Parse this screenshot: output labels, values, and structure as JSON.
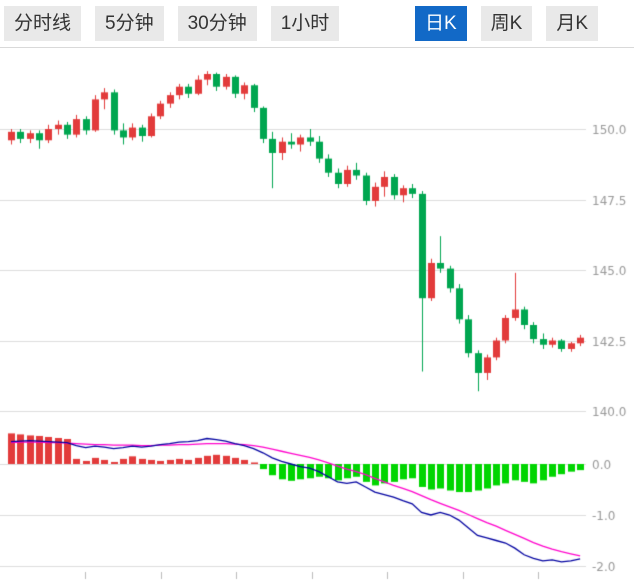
{
  "toolbar": {
    "tabs": [
      {
        "label": "分时线",
        "active": false
      },
      {
        "label": "5分钟",
        "active": false
      },
      {
        "label": "30分钟",
        "active": false
      },
      {
        "label": "1小时",
        "active": false
      },
      {
        "label": "日K",
        "active": true
      },
      {
        "label": "周K",
        "active": false
      },
      {
        "label": "月K",
        "active": false
      }
    ],
    "active_bg": "#1269c7",
    "active_fg": "#ffffff"
  },
  "chart_data": {
    "type": "candlestick+macd",
    "title": "",
    "price_panel": {
      "y_axis_labels": [
        "150.0",
        "147.5",
        "145.0",
        "142.5",
        "140.0"
      ],
      "y_axis_values": [
        150.0,
        147.5,
        145.0,
        142.5,
        140.0
      ],
      "ylim": [
        139.5,
        152.4
      ],
      "grid": true,
      "candles_ohlc": [
        [
          149.6,
          150.0,
          149.45,
          149.9
        ],
        [
          149.9,
          150.0,
          149.5,
          149.65
        ],
        [
          149.65,
          149.95,
          149.5,
          149.85
        ],
        [
          149.85,
          149.95,
          149.3,
          149.6
        ],
        [
          149.6,
          150.15,
          149.5,
          150.0
        ],
        [
          150.0,
          150.3,
          149.8,
          150.15
        ],
        [
          150.15,
          150.25,
          149.65,
          149.8
        ],
        [
          149.8,
          150.5,
          149.7,
          150.35
        ],
        [
          150.35,
          150.45,
          149.8,
          149.95
        ],
        [
          149.95,
          151.2,
          149.9,
          151.05
        ],
        [
          151.05,
          151.45,
          150.7,
          151.3
        ],
        [
          151.3,
          151.4,
          149.8,
          149.95
        ],
        [
          149.95,
          150.2,
          149.45,
          149.7
        ],
        [
          149.7,
          150.2,
          149.6,
          150.05
        ],
        [
          150.05,
          150.15,
          149.55,
          149.75
        ],
        [
          149.75,
          150.55,
          149.7,
          150.45
        ],
        [
          150.45,
          151.0,
          150.35,
          150.9
        ],
        [
          150.9,
          151.3,
          150.75,
          151.2
        ],
        [
          151.2,
          151.6,
          151.05,
          151.5
        ],
        [
          151.5,
          151.6,
          151.1,
          151.25
        ],
        [
          151.25,
          151.9,
          151.2,
          151.75
        ],
        [
          151.75,
          152.05,
          151.55,
          151.95
        ],
        [
          151.95,
          152.0,
          151.35,
          151.5
        ],
        [
          151.5,
          151.95,
          151.4,
          151.85
        ],
        [
          151.85,
          151.9,
          151.1,
          151.25
        ],
        [
          151.25,
          151.65,
          151.05,
          151.55
        ],
        [
          151.55,
          151.6,
          150.6,
          150.75
        ],
        [
          150.75,
          150.8,
          149.5,
          149.65
        ],
        [
          149.65,
          149.9,
          147.9,
          149.15
        ],
        [
          149.15,
          149.7,
          148.9,
          149.55
        ],
        [
          149.55,
          149.85,
          149.3,
          149.45
        ],
        [
          149.45,
          149.8,
          149.2,
          149.7
        ],
        [
          149.7,
          150.0,
          149.4,
          149.55
        ],
        [
          149.55,
          149.75,
          148.8,
          148.95
        ],
        [
          148.95,
          149.1,
          148.3,
          148.45
        ],
        [
          148.45,
          148.6,
          147.9,
          148.05
        ],
        [
          148.05,
          148.7,
          147.95,
          148.55
        ],
        [
          148.55,
          148.8,
          148.2,
          148.35
        ],
        [
          148.35,
          148.45,
          147.3,
          147.45
        ],
        [
          147.45,
          148.1,
          147.25,
          147.95
        ],
        [
          147.95,
          148.5,
          147.6,
          148.3
        ],
        [
          148.3,
          148.4,
          147.5,
          147.65
        ],
        [
          147.65,
          148.0,
          147.4,
          147.9
        ],
        [
          147.9,
          148.05,
          147.55,
          147.7
        ],
        [
          147.7,
          147.8,
          141.4,
          144.0
        ],
        [
          144.0,
          145.4,
          143.9,
          145.25
        ],
        [
          145.25,
          146.2,
          144.9,
          145.05
        ],
        [
          145.05,
          145.15,
          144.2,
          144.35
        ],
        [
          144.35,
          144.5,
          143.1,
          143.25
        ],
        [
          143.25,
          143.4,
          141.9,
          142.05
        ],
        [
          142.05,
          142.15,
          140.7,
          141.35
        ],
        [
          141.35,
          142.0,
          141.1,
          141.9
        ],
        [
          141.9,
          142.6,
          141.8,
          142.5
        ],
        [
          142.5,
          143.4,
          142.4,
          143.3
        ],
        [
          143.3,
          144.9,
          143.2,
          143.6
        ],
        [
          143.6,
          143.7,
          142.9,
          143.05
        ],
        [
          143.05,
          143.15,
          142.4,
          142.55
        ],
        [
          142.55,
          142.75,
          142.2,
          142.35
        ],
        [
          142.35,
          142.6,
          142.25,
          142.5
        ],
        [
          142.5,
          142.55,
          142.1,
          142.2
        ],
        [
          142.2,
          142.45,
          142.1,
          142.4
        ],
        [
          142.4,
          142.7,
          142.3,
          142.6
        ]
      ]
    },
    "macd_panel": {
      "y_axis_labels": [
        "0.0",
        "-1.0",
        "-2.0"
      ],
      "y_axis_values": [
        0.0,
        -1.0,
        -2.0
      ],
      "ylim": [
        -2.2,
        0.8
      ],
      "histogram": [
        0.6,
        0.58,
        0.56,
        0.55,
        0.53,
        0.51,
        0.49,
        0.1,
        0.06,
        0.12,
        0.08,
        0.04,
        0.1,
        0.15,
        0.1,
        0.08,
        0.06,
        0.08,
        0.1,
        0.08,
        0.12,
        0.16,
        0.18,
        0.16,
        0.12,
        0.08,
        0.03,
        -0.1,
        -0.22,
        -0.3,
        -0.33,
        -0.3,
        -0.28,
        -0.25,
        -0.28,
        -0.32,
        -0.28,
        -0.25,
        -0.35,
        -0.42,
        -0.38,
        -0.35,
        -0.3,
        -0.28,
        -0.45,
        -0.5,
        -0.48,
        -0.52,
        -0.55,
        -0.55,
        -0.52,
        -0.48,
        -0.42,
        -0.38,
        -0.32,
        -0.35,
        -0.38,
        -0.32,
        -0.25,
        -0.2,
        -0.15,
        -0.12
      ],
      "dif": [
        0.44,
        0.45,
        0.46,
        0.45,
        0.44,
        0.43,
        0.42,
        0.36,
        0.32,
        0.35,
        0.33,
        0.3,
        0.32,
        0.35,
        0.33,
        0.35,
        0.38,
        0.4,
        0.43,
        0.44,
        0.46,
        0.5,
        0.48,
        0.45,
        0.4,
        0.36,
        0.3,
        0.22,
        0.12,
        0.05,
        0.0,
        -0.05,
        -0.08,
        -0.15,
        -0.25,
        -0.35,
        -0.38,
        -0.35,
        -0.45,
        -0.55,
        -0.6,
        -0.65,
        -0.72,
        -0.78,
        -0.95,
        -1.0,
        -0.95,
        -1.0,
        -1.1,
        -1.25,
        -1.4,
        -1.45,
        -1.5,
        -1.55,
        -1.65,
        -1.78,
        -1.85,
        -1.9,
        -1.88,
        -1.92,
        -1.9,
        -1.86
      ],
      "dea": [
        0.42,
        0.43,
        0.43,
        0.43,
        0.42,
        0.42,
        0.41,
        0.4,
        0.39,
        0.38,
        0.38,
        0.37,
        0.37,
        0.37,
        0.36,
        0.36,
        0.37,
        0.37,
        0.38,
        0.38,
        0.39,
        0.4,
        0.4,
        0.4,
        0.39,
        0.38,
        0.36,
        0.33,
        0.29,
        0.25,
        0.21,
        0.17,
        0.13,
        0.08,
        0.02,
        -0.04,
        -0.1,
        -0.15,
        -0.21,
        -0.28,
        -0.35,
        -0.42,
        -0.48,
        -0.54,
        -0.62,
        -0.7,
        -0.77,
        -0.84,
        -0.91,
        -0.99,
        -1.07,
        -1.15,
        -1.22,
        -1.3,
        -1.38,
        -1.46,
        -1.54,
        -1.61,
        -1.67,
        -1.72,
        -1.76,
        -1.8
      ]
    },
    "colors": {
      "up": "#e23b3b",
      "down": "#00a650",
      "hist_positive": "#e23b3b",
      "hist_negative": "#00d500",
      "dif_line": "#0000a0",
      "dea_line": "#ff00cc",
      "grid": "#dcdcdc",
      "axis_text": "#999999"
    }
  }
}
